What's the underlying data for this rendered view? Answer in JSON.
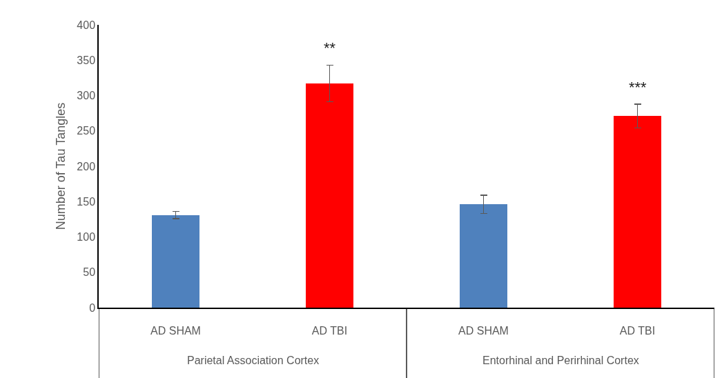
{
  "chart_data": {
    "type": "bar",
    "ylabel": "Number of Tau Tangles",
    "categories": [
      "AD SHAM",
      "AD TBI",
      "AD SHAM",
      "AD TBI"
    ],
    "values": [
      131,
      317,
      146,
      271
    ],
    "errors": [
      5,
      26,
      13,
      17
    ],
    "colors": [
      "#4f81bd",
      "#ff0000",
      "#4f81bd",
      "#ff0000"
    ],
    "value_labels": [
      null,
      "**",
      null,
      "***"
    ],
    "annotations": [
      "Parietal Association Cortex",
      "Entorhinal and Perirhinal Cortex"
    ],
    "ylim": [
      0,
      400
    ],
    "yticks": [
      0,
      50,
      100,
      150,
      200,
      250,
      300,
      350,
      400
    ]
  }
}
